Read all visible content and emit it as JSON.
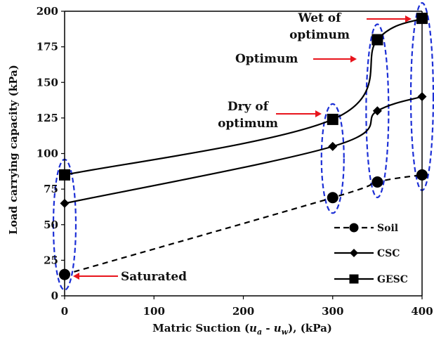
{
  "chart_data": {
    "type": "line",
    "title": "",
    "xlabel_parts": [
      "Matric Suction (",
      "u",
      "a",
      " - ",
      "u",
      "w",
      "), (kPa)"
    ],
    "ylabel": "Load carrying capacity (kPa)",
    "xlim": [
      0,
      400
    ],
    "ylim": [
      0,
      200
    ],
    "x_ticks": [
      "0",
      "100",
      "200",
      "300",
      "400"
    ],
    "y_ticks": [
      "0",
      "25",
      "50",
      "75",
      "100",
      "125",
      "150",
      "175",
      "200"
    ],
    "grid": false,
    "legend_position": "bottom-right",
    "x": [
      0,
      300,
      350,
      400
    ],
    "series": [
      {
        "name": "Soil",
        "marker": "circle",
        "line": "dashed",
        "values": [
          15,
          69,
          80,
          85
        ]
      },
      {
        "name": "CSC",
        "marker": "diamond",
        "line": "solid",
        "values": [
          65,
          105,
          130,
          140
        ]
      },
      {
        "name": "GESC",
        "marker": "square",
        "line": "solid",
        "values": [
          85,
          124,
          180,
          195
        ]
      }
    ],
    "annotations": [
      {
        "lines": [
          "Saturated"
        ],
        "x": 0,
        "y": 15
      },
      {
        "lines": [
          "Dry of",
          "optimum"
        ],
        "x": 300,
        "y": 124
      },
      {
        "lines": [
          "Optimum"
        ],
        "x": 350,
        "y": 180
      },
      {
        "lines": [
          "Wet of",
          "optimum"
        ],
        "x": 400,
        "y": 195
      }
    ],
    "colors": {
      "line": "#000000",
      "arrow": "#e8141c",
      "ellipse": "#1c2fd6"
    }
  }
}
